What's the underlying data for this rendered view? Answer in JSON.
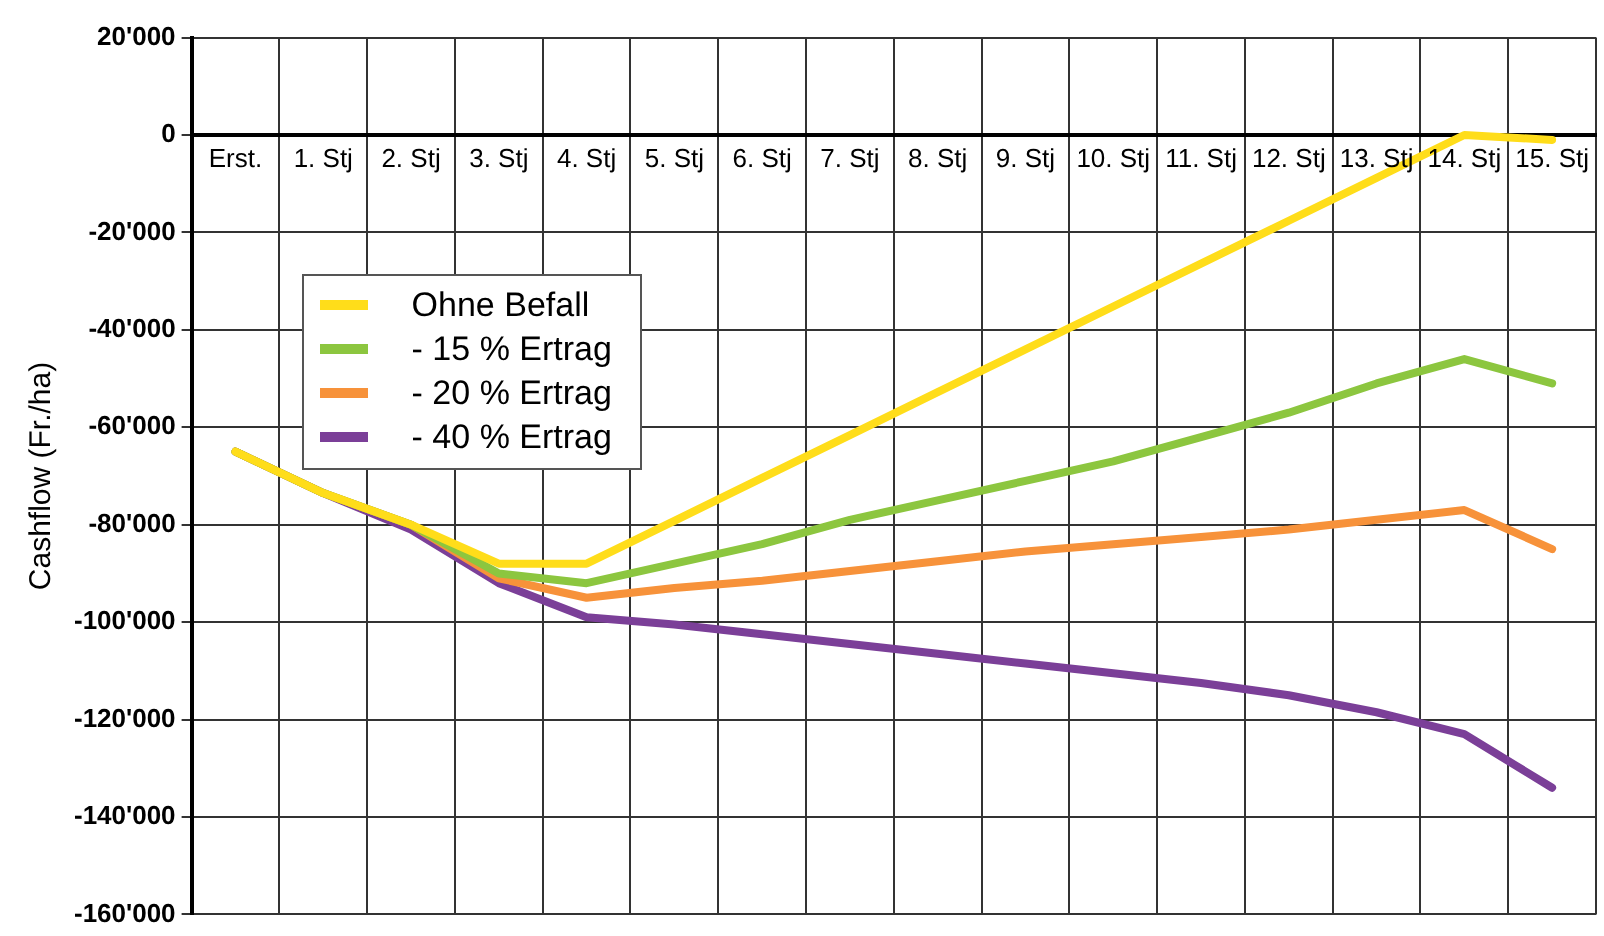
{
  "chart_data": {
    "type": "line",
    "ylabel": "Cashflow (Fr./ha)",
    "categories": [
      "Erst.",
      "1. Stj",
      "2. Stj",
      "3. Stj",
      "4. Stj",
      "5. Stj",
      "6. Stj",
      "7. Stj",
      "8. Stj",
      "9. Stj",
      "10. Stj",
      "11. Stj",
      "12. Stj",
      "13. Stj",
      "14. Stj",
      "15. Stj"
    ],
    "series": [
      {
        "name": "Ohne Befall",
        "color": "#ffdd1a",
        "values": [
          -65000,
          -73500,
          -80000,
          -88000,
          -88000,
          -79200,
          -70400,
          -61600,
          -52800,
          -44000,
          -35200,
          -26400,
          -17600,
          -8800,
          0,
          -1000
        ]
      },
      {
        "name": "- 15 % Ertrag",
        "color": "#8cc63f",
        "values": [
          -65000,
          -73500,
          -80000,
          -90000,
          -92000,
          -88000,
          -84000,
          -79000,
          -75000,
          -71000,
          -67000,
          -62000,
          -57000,
          -51000,
          -46000,
          -51000
        ]
      },
      {
        "name": "- 20 % Ertrag",
        "color": "#f7923a",
        "values": [
          -65000,
          -73500,
          -80000,
          -91000,
          -95000,
          -93000,
          -91500,
          -89500,
          -87500,
          -85500,
          -84000,
          -82500,
          -81000,
          -79000,
          -77000,
          -85000
        ]
      },
      {
        "name": "- 40 % Ertrag",
        "color": "#7b3f98",
        "values": [
          -65000,
          -73500,
          -81000,
          -92000,
          -99000,
          -100500,
          -102500,
          -104500,
          -106500,
          -108500,
          -110500,
          -112500,
          -115000,
          -118500,
          -123000,
          -134000
        ]
      }
    ],
    "ylim": [
      -160000,
      20000
    ],
    "yticks": [
      {
        "value": -160000,
        "label": "-160'000"
      },
      {
        "value": -140000,
        "label": "-140'000"
      },
      {
        "value": -120000,
        "label": "-120'000"
      },
      {
        "value": -100000,
        "label": "-100'000"
      },
      {
        "value": -80000,
        "label": "-80'000"
      },
      {
        "value": -60000,
        "label": "-60'000"
      },
      {
        "value": -40000,
        "label": "-40'000"
      },
      {
        "value": -20000,
        "label": "-20'000"
      },
      0,
      {
        "value": 20000,
        "label": "20'000"
      }
    ],
    "grid": true,
    "legend": "top left",
    "marker": "none",
    "line_style": "solid"
  }
}
